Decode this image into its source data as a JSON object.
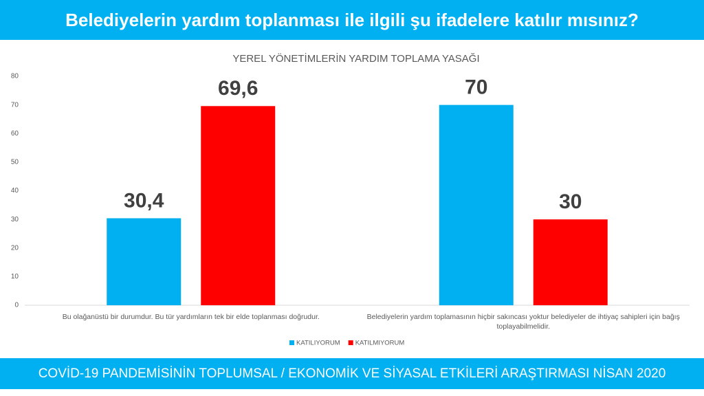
{
  "header": {
    "title": "Belediyelerin yardım toplanması ile ilgili şu ifadelere katılır mısınız?"
  },
  "footer": {
    "text": "COVİD-19 PANDEMİSİNİN TOPLUMSAL / EKONOMİK VE SİYASAL ETKİLERİ ARAŞTIRMASI NİSAN 2020"
  },
  "chart_data": {
    "type": "bar",
    "title": "YEREL YÖNETİMLERİN YARDIM TOPLAMA YASAĞI",
    "categories": [
      "Bu olağanüstü bir durumdur. Bu tür yardımların tek bir elde toplanması doğrudur.",
      "Belediyelerin yardım toplamasının hiçbir sakıncası yoktur belediyeler de ihtiyaç sahipleri için bağış toplayabilmelidir."
    ],
    "series": [
      {
        "name": "KATILIYORUM",
        "color": "#00b0f0",
        "values": [
          30.4,
          70
        ],
        "value_labels": [
          "30,4",
          "70"
        ]
      },
      {
        "name": "KATILMIYORUM",
        "color": "#ff0000",
        "values": [
          69.6,
          30
        ],
        "value_labels": [
          "69,6",
          "30"
        ]
      }
    ],
    "ylim": [
      0,
      80
    ],
    "yticks": [
      0,
      10,
      20,
      30,
      40,
      50,
      60,
      70,
      80
    ],
    "grid": false,
    "legend": "bottom"
  }
}
